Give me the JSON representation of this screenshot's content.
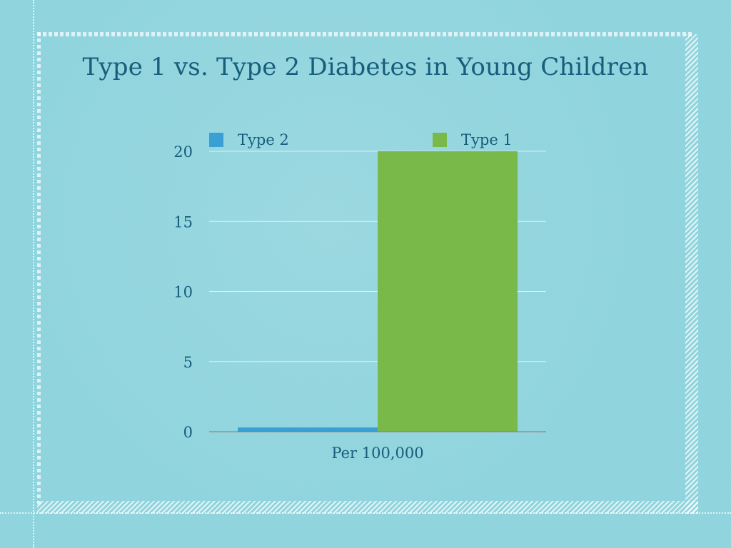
{
  "slide": {
    "title": "Type 1 vs. Type 2 Diabetes in Young Children"
  },
  "colors": {
    "background": "#8fd4dd",
    "title_text": "#175d7c",
    "type2": "#3a9fd4",
    "type1": "#78b94a",
    "gridline": "#d8f1f4",
    "axis": "#a36a6a"
  },
  "chart_data": {
    "type": "bar",
    "title": "Type 1 vs. Type 2 Diabetes in Young Children",
    "categories": [
      "Per 100,000"
    ],
    "series": [
      {
        "name": "Type 2",
        "values": [
          0.3
        ]
      },
      {
        "name": "Type 1",
        "values": [
          20
        ]
      }
    ],
    "legend": [
      "Type 2",
      "Type 1"
    ],
    "legend_position": "top",
    "xlabel": "",
    "ylabel": "",
    "ylim": [
      0,
      20
    ],
    "yticks": [
      "0",
      "5",
      "10",
      "15",
      "20"
    ],
    "grid": true
  }
}
